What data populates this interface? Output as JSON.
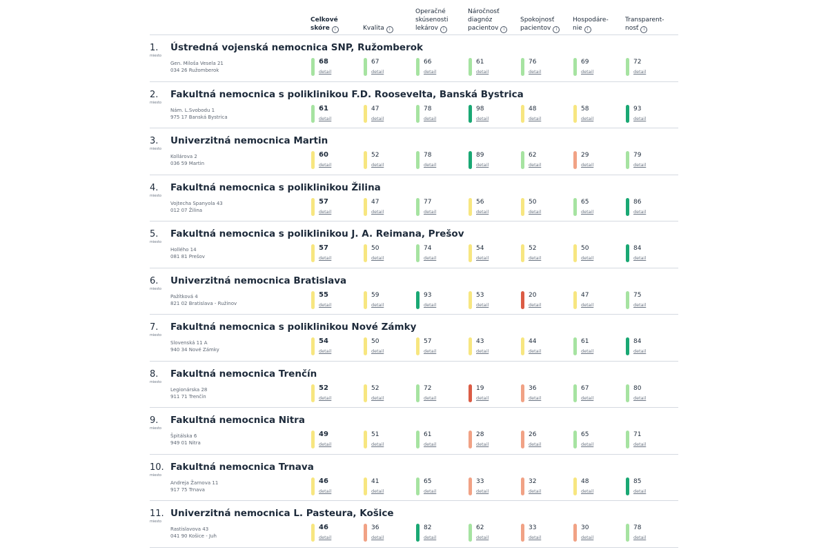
{
  "colors": {
    "light_green": "#a6e3a1",
    "yellow": "#f7e680",
    "dark_green": "#1aa874",
    "salmon": "#f1a285",
    "red": "#db5c45"
  },
  "columns": [
    {
      "label": "Celkové\nskóre",
      "info_icon": "info-icon"
    },
    {
      "label": "Kvalita",
      "info_icon": "info-icon"
    },
    {
      "label": "Operačné\nskúsenosti\nlekárov",
      "info_icon": "info-icon"
    },
    {
      "label": "Náročnosť\ndiagnóz\npacientov",
      "info_icon": "info-icon"
    },
    {
      "label": "Spokojnosť\npacientov",
      "info_icon": "info-icon"
    },
    {
      "label": "Hospodáre-\nnie",
      "info_icon": "info-icon"
    },
    {
      "label": "Transparent-\nnosť",
      "info_icon": "info-icon"
    }
  ],
  "info_glyph": "i",
  "detail_label": "detail",
  "rank_suffix": "miesto",
  "hospitals": [
    {
      "rank": "1.",
      "name": "Ústredná vojenská nemocnica SNP, Ružomberok",
      "addr1": "Gen. Miloša Vesela 21",
      "addr2": "034 26 Ružomberok",
      "scores": [
        {
          "v": "68",
          "c": "light_green"
        },
        {
          "v": "67",
          "c": "light_green"
        },
        {
          "v": "66",
          "c": "light_green"
        },
        {
          "v": "61",
          "c": "light_green"
        },
        {
          "v": "76",
          "c": "light_green"
        },
        {
          "v": "69",
          "c": "light_green"
        },
        {
          "v": "72",
          "c": "light_green"
        }
      ]
    },
    {
      "rank": "2.",
      "name": "Fakultná nemocnica s poliklinikou F.D. Roosevelta, Banská Bystrica",
      "addr1": "Nám. L.Svobodu 1",
      "addr2": "975 17 Banská Bystrica",
      "scores": [
        {
          "v": "61",
          "c": "light_green"
        },
        {
          "v": "47",
          "c": "yellow"
        },
        {
          "v": "78",
          "c": "light_green"
        },
        {
          "v": "98",
          "c": "dark_green"
        },
        {
          "v": "48",
          "c": "yellow"
        },
        {
          "v": "58",
          "c": "yellow"
        },
        {
          "v": "93",
          "c": "dark_green"
        }
      ]
    },
    {
      "rank": "3.",
      "name": "Univerzitná nemocnica Martin",
      "addr1": "Kollárova 2",
      "addr2": "036 59 Martin",
      "scores": [
        {
          "v": "60",
          "c": "yellow"
        },
        {
          "v": "52",
          "c": "yellow"
        },
        {
          "v": "78",
          "c": "light_green"
        },
        {
          "v": "89",
          "c": "dark_green"
        },
        {
          "v": "62",
          "c": "light_green"
        },
        {
          "v": "29",
          "c": "salmon"
        },
        {
          "v": "79",
          "c": "light_green"
        }
      ]
    },
    {
      "rank": "4.",
      "name": "Fakultná nemocnica s poliklinikou Žilina",
      "addr1": "Vojtecha Spanyola 43",
      "addr2": "012 07 Žilina",
      "scores": [
        {
          "v": "57",
          "c": "yellow"
        },
        {
          "v": "47",
          "c": "yellow"
        },
        {
          "v": "77",
          "c": "light_green"
        },
        {
          "v": "56",
          "c": "yellow"
        },
        {
          "v": "50",
          "c": "yellow"
        },
        {
          "v": "65",
          "c": "light_green"
        },
        {
          "v": "86",
          "c": "dark_green"
        }
      ]
    },
    {
      "rank": "5.",
      "name": "Fakultná nemocnica s poliklinikou J. A. Reimana, Prešov",
      "addr1": "Hollého 14",
      "addr2": "081 81 Prešov",
      "scores": [
        {
          "v": "57",
          "c": "yellow"
        },
        {
          "v": "50",
          "c": "yellow"
        },
        {
          "v": "74",
          "c": "light_green"
        },
        {
          "v": "54",
          "c": "yellow"
        },
        {
          "v": "52",
          "c": "yellow"
        },
        {
          "v": "50",
          "c": "yellow"
        },
        {
          "v": "84",
          "c": "dark_green"
        }
      ]
    },
    {
      "rank": "6.",
      "name": "Univerzitná nemocnica Bratislava",
      "addr1": "Pažítková 4",
      "addr2": "821 02 Bratislava - Ružinov",
      "scores": [
        {
          "v": "55",
          "c": "yellow"
        },
        {
          "v": "59",
          "c": "yellow"
        },
        {
          "v": "93",
          "c": "dark_green"
        },
        {
          "v": "53",
          "c": "yellow"
        },
        {
          "v": "20",
          "c": "red"
        },
        {
          "v": "47",
          "c": "yellow"
        },
        {
          "v": "75",
          "c": "light_green"
        }
      ]
    },
    {
      "rank": "7.",
      "name": "Fakultná nemocnica s poliklinikou Nové Zámky",
      "addr1": "Slovenská 11 A",
      "addr2": "940 34 Nové Zámky",
      "scores": [
        {
          "v": "54",
          "c": "yellow"
        },
        {
          "v": "50",
          "c": "yellow"
        },
        {
          "v": "57",
          "c": "yellow"
        },
        {
          "v": "43",
          "c": "yellow"
        },
        {
          "v": "44",
          "c": "yellow"
        },
        {
          "v": "61",
          "c": "light_green"
        },
        {
          "v": "84",
          "c": "dark_green"
        }
      ]
    },
    {
      "rank": "8.",
      "name": "Fakultná nemocnica Trenčín",
      "addr1": "Legionárska 28",
      "addr2": "911 71 Trenčín",
      "scores": [
        {
          "v": "52",
          "c": "yellow"
        },
        {
          "v": "52",
          "c": "yellow"
        },
        {
          "v": "72",
          "c": "light_green"
        },
        {
          "v": "19",
          "c": "red"
        },
        {
          "v": "36",
          "c": "salmon"
        },
        {
          "v": "67",
          "c": "light_green"
        },
        {
          "v": "80",
          "c": "light_green"
        }
      ]
    },
    {
      "rank": "9.",
      "name": "Fakultná nemocnica Nitra",
      "addr1": "Špitálska 6",
      "addr2": "949 01 Nitra",
      "scores": [
        {
          "v": "49",
          "c": "yellow"
        },
        {
          "v": "51",
          "c": "yellow"
        },
        {
          "v": "61",
          "c": "light_green"
        },
        {
          "v": "28",
          "c": "salmon"
        },
        {
          "v": "26",
          "c": "salmon"
        },
        {
          "v": "65",
          "c": "light_green"
        },
        {
          "v": "71",
          "c": "light_green"
        }
      ]
    },
    {
      "rank": "10.",
      "name": "Fakultná nemocnica Trnava",
      "addr1": "Andreja Žarnova 11",
      "addr2": "917 75 Trnava",
      "scores": [
        {
          "v": "46",
          "c": "yellow"
        },
        {
          "v": "41",
          "c": "yellow"
        },
        {
          "v": "65",
          "c": "light_green"
        },
        {
          "v": "33",
          "c": "salmon"
        },
        {
          "v": "32",
          "c": "salmon"
        },
        {
          "v": "48",
          "c": "yellow"
        },
        {
          "v": "85",
          "c": "dark_green"
        }
      ]
    },
    {
      "rank": "11.",
      "name": "Univerzitná nemocnica L. Pasteura, Košice",
      "addr1": "Rastislavova 43",
      "addr2": "041 90 Košice - Juh",
      "scores": [
        {
          "v": "46",
          "c": "yellow"
        },
        {
          "v": "36",
          "c": "salmon"
        },
        {
          "v": "82",
          "c": "dark_green"
        },
        {
          "v": "62",
          "c": "light_green"
        },
        {
          "v": "33",
          "c": "salmon"
        },
        {
          "v": "30",
          "c": "salmon"
        },
        {
          "v": "78",
          "c": "light_green"
        }
      ]
    }
  ]
}
